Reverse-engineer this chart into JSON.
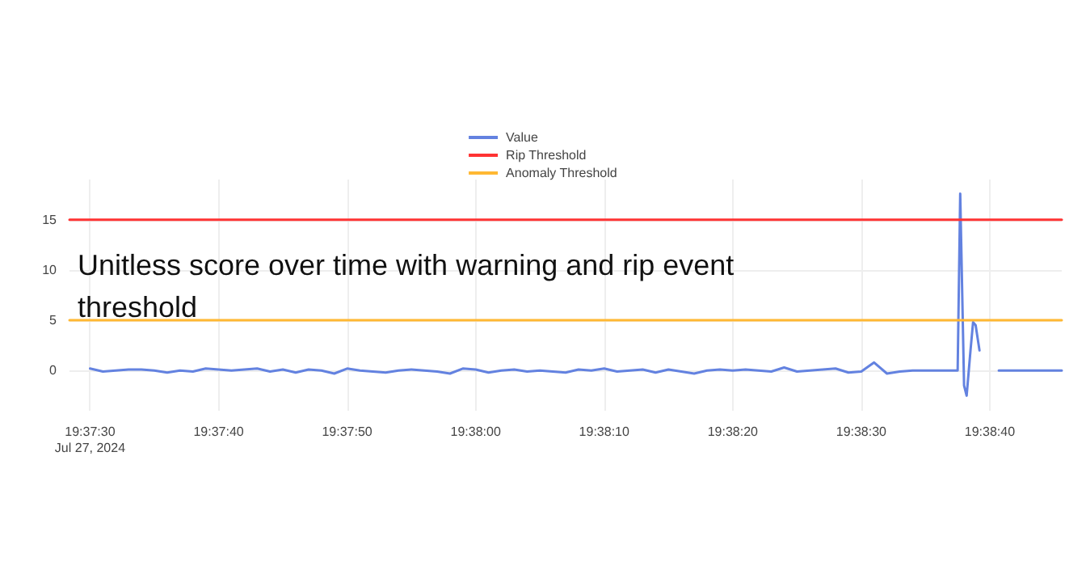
{
  "chart_data": {
    "type": "line",
    "title": "Unitless score over time with warning and rip event threshold",
    "xlim": [
      "2024-07-27T19:37:28.4",
      "2024-07-27T19:38:45.6"
    ],
    "xticks": [
      {
        "value": "2024-07-27T19:37:30",
        "label": "19:37:30\nJul 27, 2024"
      },
      {
        "value": "2024-07-27T19:37:40",
        "label": "19:37:40"
      },
      {
        "value": "2024-07-27T19:37:50",
        "label": "19:37:50"
      },
      {
        "value": "2024-07-27T19:38:00",
        "label": "19:38:00"
      },
      {
        "value": "2024-07-27T19:38:10",
        "label": "19:38:10"
      },
      {
        "value": "2024-07-27T19:38:20",
        "label": "19:38:20"
      },
      {
        "value": "2024-07-27T19:38:30",
        "label": "19:38:30"
      },
      {
        "value": "2024-07-27T19:38:40",
        "label": "19:38:40"
      }
    ],
    "ylim": [
      -4,
      19
    ],
    "yticks": [
      0,
      5,
      10,
      15
    ],
    "grid": true,
    "legend": "top",
    "marker": "none",
    "line_style": "solid",
    "series": [
      {
        "name": "Value",
        "color": "#6382e0",
        "x": [
          "2024-07-27T19:37:30",
          "2024-07-27T19:37:31",
          "2024-07-27T19:37:32",
          "2024-07-27T19:37:33",
          "2024-07-27T19:37:34",
          "2024-07-27T19:37:35",
          "2024-07-27T19:37:36",
          "2024-07-27T19:37:37",
          "2024-07-27T19:37:38",
          "2024-07-27T19:37:39",
          "2024-07-27T19:37:40",
          "2024-07-27T19:37:41",
          "2024-07-27T19:37:42",
          "2024-07-27T19:37:43",
          "2024-07-27T19:37:44",
          "2024-07-27T19:37:45",
          "2024-07-27T19:37:46",
          "2024-07-27T19:37:47",
          "2024-07-27T19:37:48",
          "2024-07-27T19:37:49",
          "2024-07-27T19:37:50",
          "2024-07-27T19:37:51",
          "2024-07-27T19:37:52",
          "2024-07-27T19:37:53",
          "2024-07-27T19:37:54",
          "2024-07-27T19:37:55",
          "2024-07-27T19:37:56",
          "2024-07-27T19:37:57",
          "2024-07-27T19:37:58",
          "2024-07-27T19:37:59",
          "2024-07-27T19:38:00",
          "2024-07-27T19:38:01",
          "2024-07-27T19:38:02",
          "2024-07-27T19:38:03",
          "2024-07-27T19:38:04",
          "2024-07-27T19:38:05",
          "2024-07-27T19:38:06",
          "2024-07-27T19:38:07",
          "2024-07-27T19:38:08",
          "2024-07-27T19:38:09",
          "2024-07-27T19:38:10",
          "2024-07-27T19:38:11",
          "2024-07-27T19:38:12",
          "2024-07-27T19:38:13",
          "2024-07-27T19:38:14",
          "2024-07-27T19:38:15",
          "2024-07-27T19:38:16",
          "2024-07-27T19:38:17",
          "2024-07-27T19:38:18",
          "2024-07-27T19:38:19",
          "2024-07-27T19:38:20",
          "2024-07-27T19:38:21",
          "2024-07-27T19:38:22",
          "2024-07-27T19:38:23",
          "2024-07-27T19:38:24",
          "2024-07-27T19:38:25",
          "2024-07-27T19:38:26",
          "2024-07-27T19:38:27",
          "2024-07-27T19:38:28",
          "2024-07-27T19:38:29",
          "2024-07-27T19:38:30",
          "2024-07-27T19:38:31",
          "2024-07-27T19:38:32",
          "2024-07-27T19:38:33",
          "2024-07-27T19:38:34",
          "2024-07-27T19:38:35",
          "2024-07-27T19:38:36",
          "2024-07-27T19:38:37.5",
          "2024-07-27T19:38:37.7",
          "2024-07-27T19:38:38",
          "2024-07-27T19:38:38.2",
          "2024-07-27T19:38:38.5",
          "2024-07-27T19:38:38.7",
          "2024-07-27T19:38:38.9",
          "2024-07-27T19:38:39.2",
          "2024-07-27T19:38:39.4",
          "2024-07-27T19:38:40.6",
          "2024-07-27T19:38:40.7",
          "2024-07-27T19:38:45.6"
        ],
        "values": [
          0.2,
          -0.1,
          0,
          0.1,
          0.1,
          0,
          -0.2,
          0,
          -0.1,
          0.2,
          0.1,
          0,
          0.1,
          0.2,
          -0.1,
          0.1,
          -0.2,
          0.1,
          0,
          -0.3,
          0.2,
          0,
          -0.1,
          -0.2,
          0,
          0.1,
          0,
          -0.1,
          -0.3,
          0.2,
          0.1,
          -0.2,
          0,
          0.1,
          -0.1,
          0,
          -0.1,
          -0.2,
          0.1,
          0,
          0.2,
          -0.1,
          0,
          0.1,
          -0.2,
          0.1,
          -0.1,
          -0.3,
          0,
          0.1,
          0,
          0.1,
          0,
          -0.1,
          0.3,
          -0.1,
          0,
          0.1,
          0.2,
          -0.2,
          -0.1,
          0.8,
          -0.3,
          -0.1,
          0,
          0,
          0,
          0,
          17.6,
          -1.5,
          -2.5,
          2,
          4.8,
          4.5,
          2,
          null,
          null,
          0,
          0
        ]
      },
      {
        "name": "Rip Threshold",
        "color": "#ff3333",
        "x": [
          "2024-07-27T19:37:28.4",
          "2024-07-27T19:38:45.6"
        ],
        "values": [
          15,
          15
        ]
      },
      {
        "name": "Anomaly Threshold",
        "color": "#ffb833",
        "x": [
          "2024-07-27T19:37:28.4",
          "2024-07-27T19:38:45.6"
        ],
        "values": [
          5,
          5
        ]
      }
    ]
  }
}
